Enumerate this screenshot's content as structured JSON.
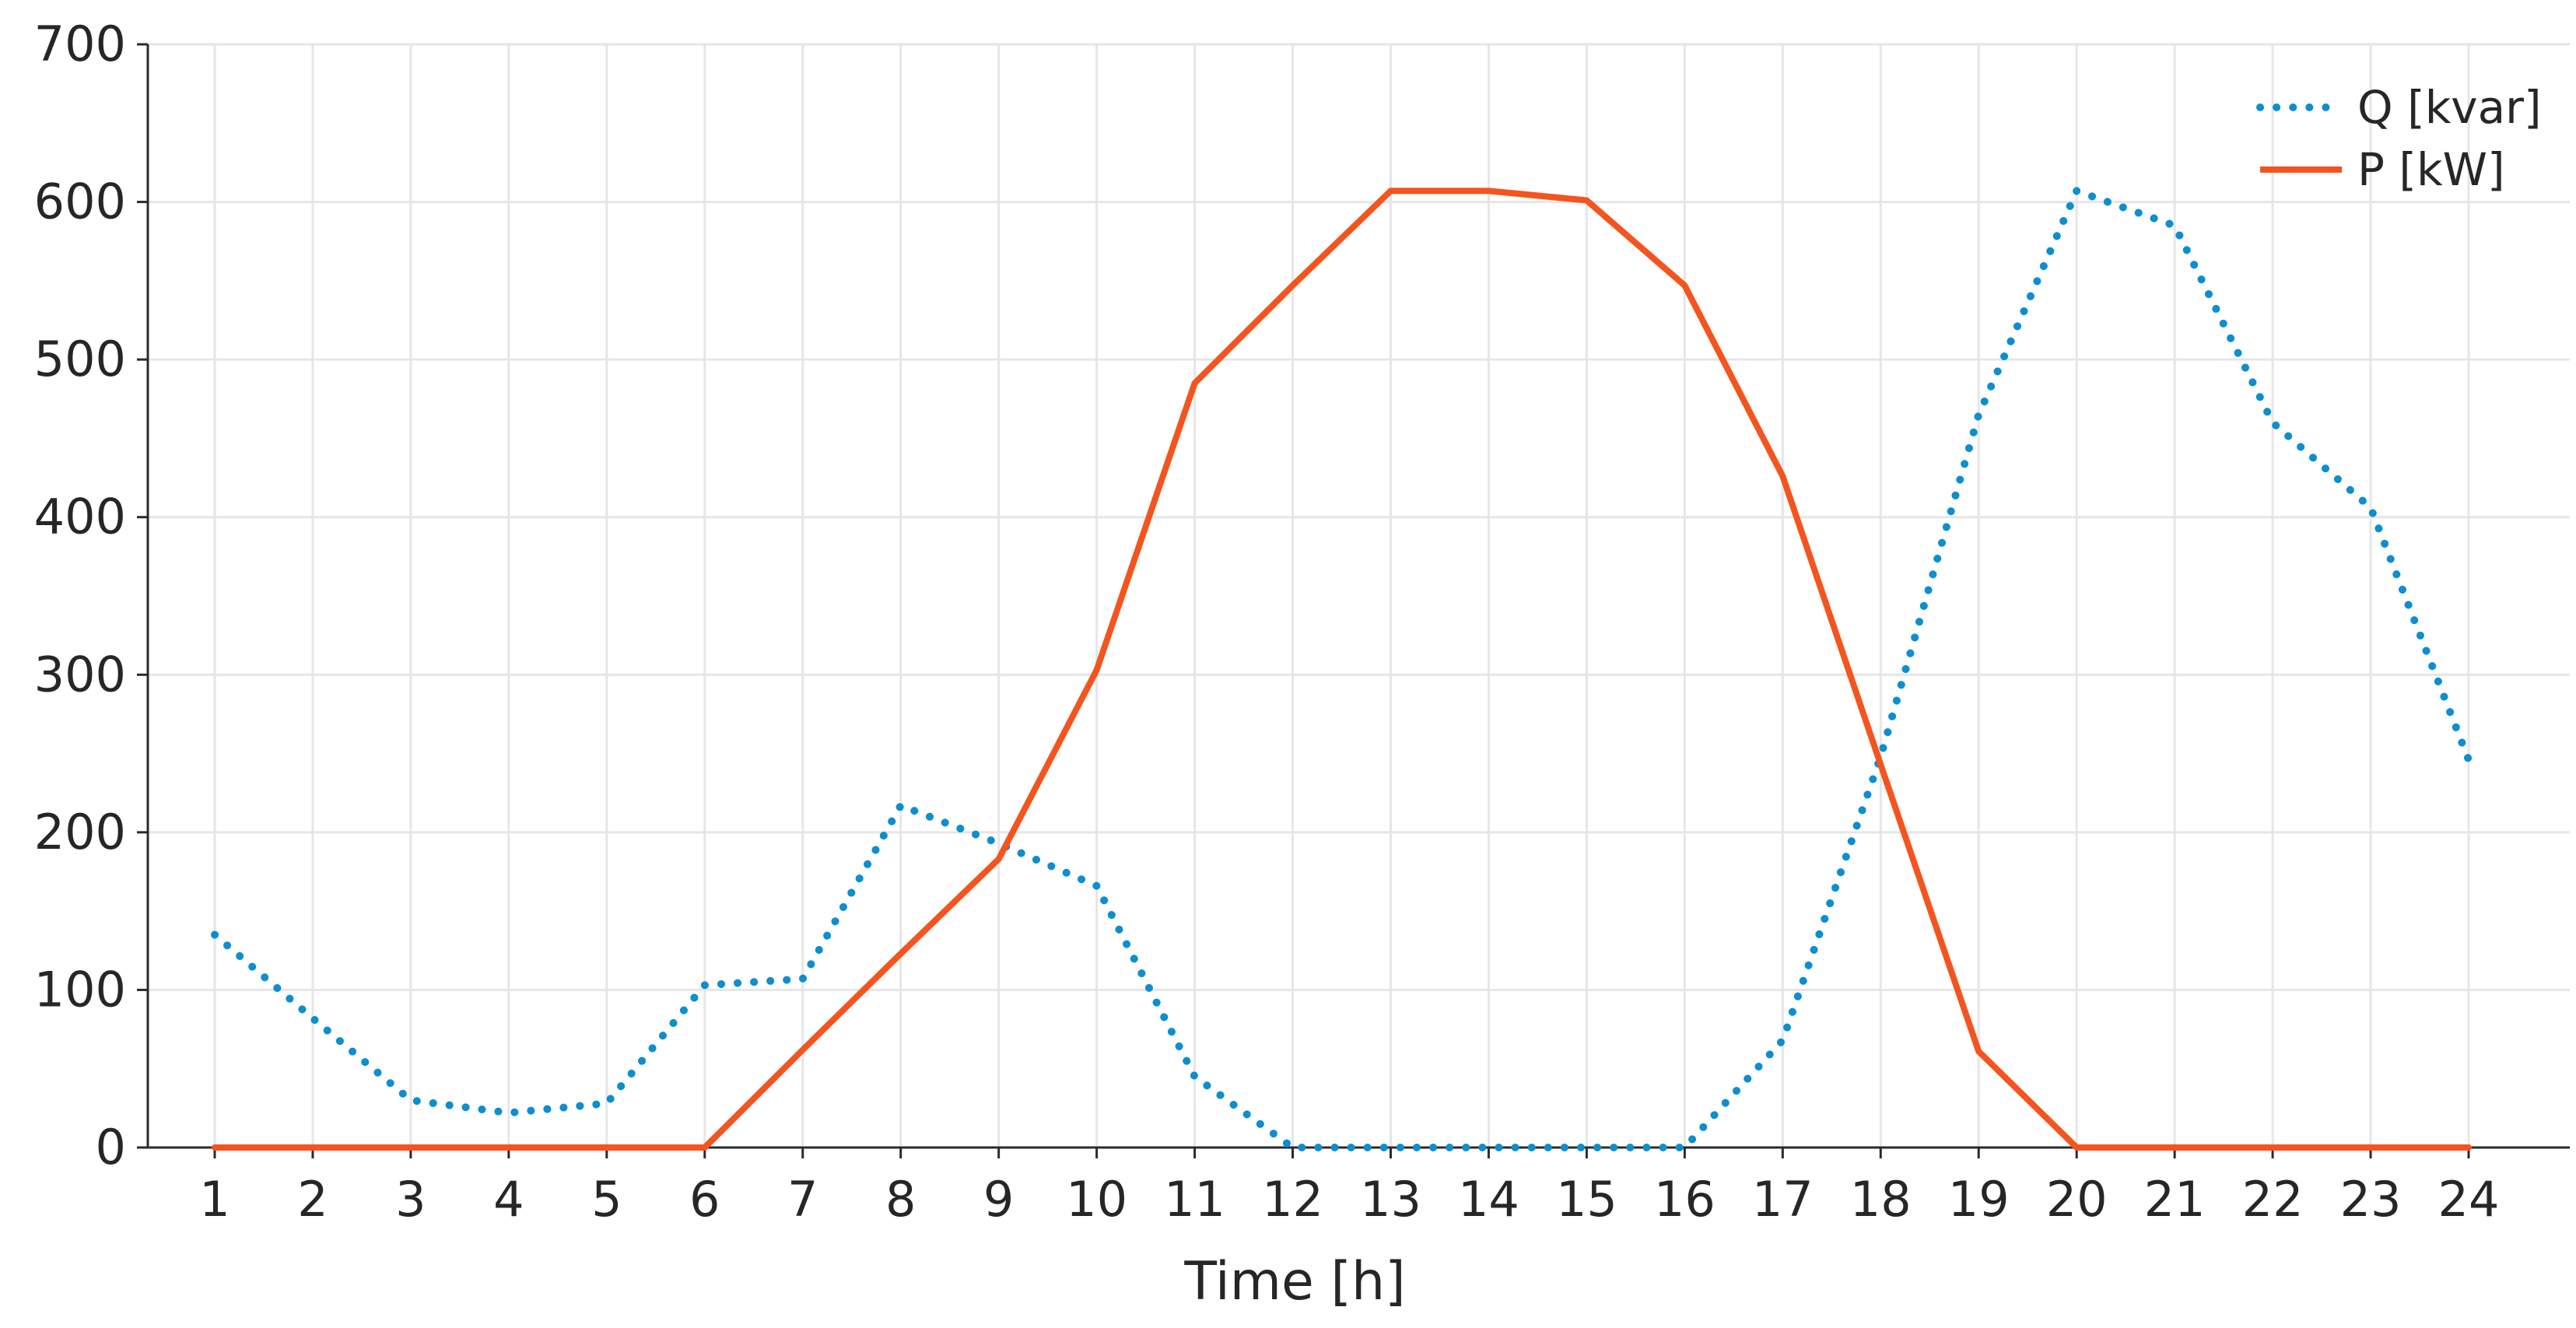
{
  "chart_data": {
    "type": "line",
    "title": "",
    "xlabel": "Time [h]",
    "ylabel": "",
    "x": [
      1,
      2,
      3,
      4,
      5,
      6,
      7,
      8,
      9,
      10,
      11,
      12,
      13,
      14,
      15,
      16,
      17,
      18,
      19,
      20,
      21,
      22,
      23,
      24
    ],
    "xlim": [
      1,
      24
    ],
    "ylim": [
      0,
      700
    ],
    "yticks": [
      0,
      100,
      200,
      300,
      400,
      500,
      600,
      700
    ],
    "grid": true,
    "legend_position": "top-right",
    "series": [
      {
        "name": "Q [kvar]",
        "style": "dotted",
        "color": "#0d8ecf",
        "values": [
          135,
          82,
          30,
          22,
          28,
          103,
          107,
          217,
          193,
          166,
          45,
          0,
          0,
          0,
          0,
          0,
          68,
          248,
          465,
          607,
          585,
          460,
          406,
          246
        ]
      },
      {
        "name": "P [kW]",
        "style": "solid",
        "color": "#f4541e",
        "values": [
          0,
          0,
          0,
          0,
          0,
          0,
          62,
          123,
          183,
          303,
          485,
          547,
          607,
          607,
          601,
          547,
          426,
          243,
          61,
          0,
          0,
          0,
          0,
          0
        ]
      }
    ]
  }
}
